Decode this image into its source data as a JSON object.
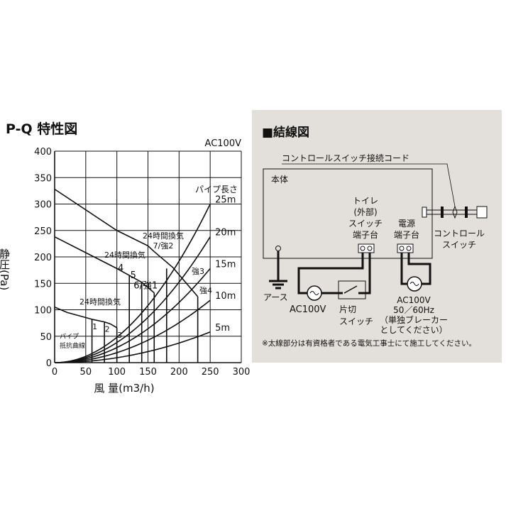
{
  "chart_data": {
    "type": "line",
    "title": "P-Q 特性図",
    "voltage": "AC100V",
    "xlabel": "風 量(m3/h)",
    "ylabel": "静圧(Pa)",
    "xlim": [
      0,
      300
    ],
    "ylim": [
      0,
      400
    ],
    "xticks": [
      0,
      50,
      100,
      150,
      200,
      250,
      300
    ],
    "yticks": [
      0,
      50,
      100,
      150,
      200,
      250,
      300,
      350,
      400
    ],
    "grid": true,
    "fan_curves": [
      {
        "label": "24時間換気 7/強2",
        "points": [
          [
            0,
            328
          ],
          [
            100,
            250
          ],
          [
            150,
            221
          ],
          [
            160,
            210
          ],
          [
            190,
            180
          ],
          [
            230,
            125
          ]
        ],
        "drops": [
          [
            180,
            178
          ],
          [
            230,
            125
          ]
        ],
        "drop_labels": [
          "強3",
          "強4"
        ]
      },
      {
        "label": "24時間換気",
        "points": [
          [
            0,
            238
          ],
          [
            100,
            178
          ],
          [
            120,
            165
          ],
          [
            140,
            152
          ],
          [
            160,
            132
          ]
        ],
        "drops": [
          [
            120,
            165
          ],
          [
            140,
            152
          ],
          [
            160,
            132
          ]
        ],
        "drop_labels": [
          "4",
          "5",
          "6/強1"
        ]
      },
      {
        "label": "24時間換気",
        "points": [
          [
            0,
            105
          ],
          [
            20,
            95
          ],
          [
            60,
            82
          ],
          [
            80,
            77
          ],
          [
            90,
            73
          ],
          [
            100,
            66
          ]
        ],
        "drops": [
          [
            60,
            82
          ],
          [
            80,
            77
          ],
          [
            100,
            66
          ]
        ],
        "drop_labels": [
          "1",
          "2",
          "3"
        ]
      }
    ],
    "pipe_curves_title": "パイプ長さ",
    "pipe_curves_label": "パイプ抵抗曲線",
    "pipe_curves": [
      {
        "name": "25m",
        "p_at_250": 300
      },
      {
        "name": "20m",
        "p_at_250": 238
      },
      {
        "name": "15m",
        "p_at_250": 178
      },
      {
        "name": "10m",
        "p_at_250": 118
      },
      {
        "name": "5m",
        "p_at_250": 58
      }
    ]
  },
  "wiring": {
    "title": "■結線図",
    "cord_label": "コントロールスイッチ接続コード",
    "body": "本体",
    "toilet_terminal": [
      "トイレ",
      "(外部)",
      "スイッチ",
      "端子台"
    ],
    "power_terminal": [
      "電源",
      "端子台"
    ],
    "control_switch": [
      "コントロール",
      "スイッチ"
    ],
    "earth": "アース",
    "ac_left": "AC100V",
    "switch_label": [
      "片切",
      "スイッチ"
    ],
    "ac_right": [
      "AC100V",
      "50／60Hz",
      "（単独ブレーカー",
      "としてください）"
    ],
    "note": "※太線部分は有資格者である電気工事士にて施工してください。"
  }
}
